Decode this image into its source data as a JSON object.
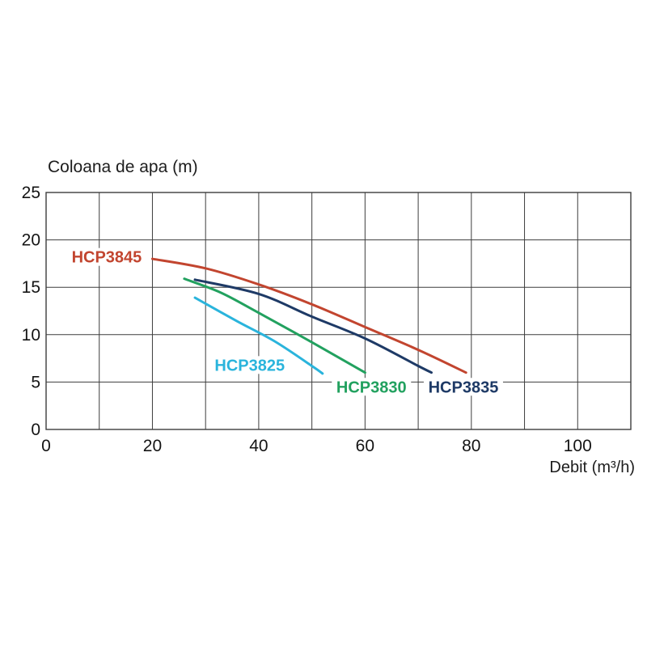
{
  "page": {
    "background": "#ffffff"
  },
  "chart_data": {
    "type": "line",
    "title": "Coloana de apa  (m)",
    "xlabel": "Debit (m³/h)",
    "ylabel": "Coloana de apa (m)",
    "xlim": [
      0,
      110
    ],
    "ylim": [
      0,
      25
    ],
    "xticks": [
      0,
      20,
      40,
      60,
      80,
      100
    ],
    "yticks": [
      0,
      5,
      10,
      15,
      20,
      25
    ],
    "xgrid_step": 10,
    "ygrid_step": 5,
    "grid": true,
    "legend_position": "inline-labels",
    "colors": {
      "grid": "#3d3d3d",
      "text": "#1d1d1d",
      "background": "#ffffff"
    },
    "series": [
      {
        "name": "HCP3845",
        "color": "#c2452f",
        "points": [
          [
            20,
            18.0
          ],
          [
            30,
            17.0
          ],
          [
            40,
            15.3
          ],
          [
            50,
            13.2
          ],
          [
            60,
            10.8
          ],
          [
            70,
            8.4
          ],
          [
            79,
            6.0
          ]
        ],
        "label_at": [
          11.4,
          18.2
        ]
      },
      {
        "name": "HCP3835",
        "color": "#1e3a66",
        "points": [
          [
            28,
            15.8
          ],
          [
            40,
            14.3
          ],
          [
            50,
            11.9
          ],
          [
            60,
            9.6
          ],
          [
            70,
            6.7
          ],
          [
            72.5,
            6.0
          ]
        ],
        "label_at": [
          78.5,
          4.5
        ]
      },
      {
        "name": "HCP3830",
        "color": "#22a15f",
        "points": [
          [
            26,
            15.9
          ],
          [
            33,
            14.4
          ],
          [
            40,
            12.3
          ],
          [
            50,
            9.2
          ],
          [
            60,
            6.0
          ]
        ],
        "label_at": [
          61.2,
          4.5
        ]
      },
      {
        "name": "HCP3825",
        "color": "#2ab4dc",
        "points": [
          [
            28,
            13.9
          ],
          [
            36,
            11.4
          ],
          [
            43,
            9.3
          ],
          [
            50,
            6.7
          ],
          [
            52,
            5.9
          ]
        ],
        "label_at": [
          38.3,
          6.8
        ]
      }
    ]
  }
}
